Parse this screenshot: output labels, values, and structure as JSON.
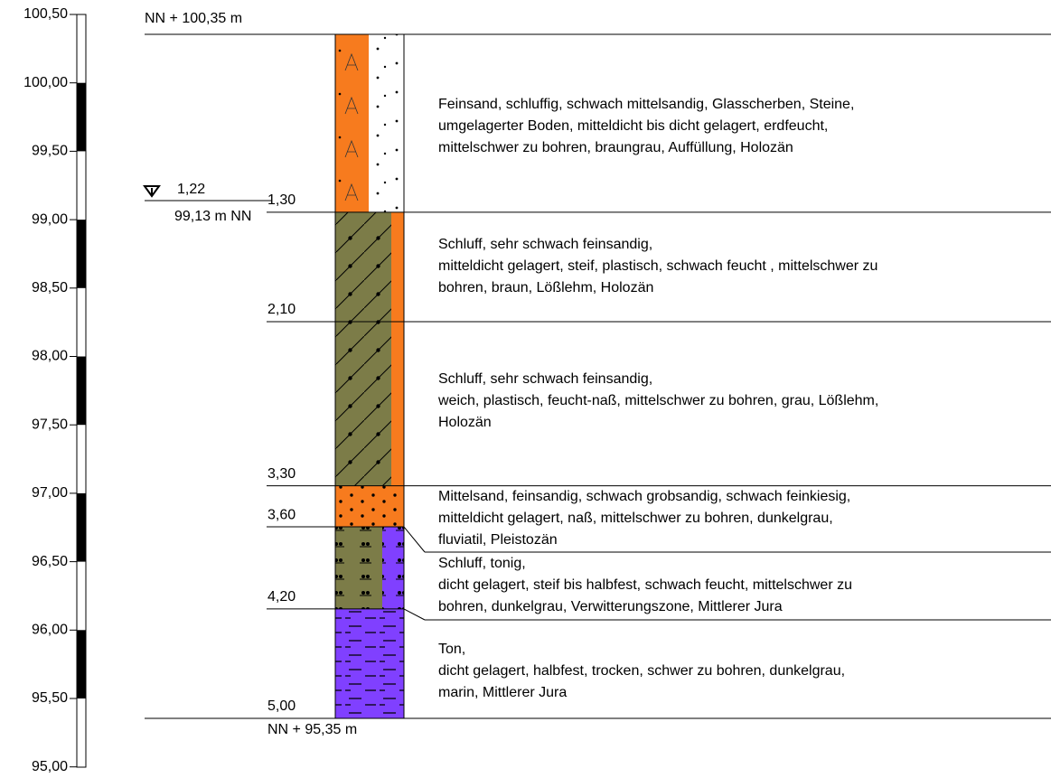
{
  "scale": {
    "ticks": [
      "100,50",
      "100,00",
      "99,50",
      "99,00",
      "98,50",
      "98,00",
      "97,50",
      "97,00",
      "96,50",
      "96,00",
      "95,50",
      "95,00"
    ]
  },
  "top_label": "NN + 100,35 m",
  "bottom_label": "NN + 95,35 m",
  "water_level": {
    "depth": "1,22",
    "elevation": "99,13 m NN"
  },
  "layers": [
    {
      "depth": "1,30",
      "description": [
        "Feinsand, schluffig, schwach mittelsandig, Glasscherben, Steine,",
        "umgelagerter Boden, mitteldicht bis dicht gelagert, erdfeucht,",
        "mittelschwer zu bohren, braungrau, Auffüllung, Holozän"
      ]
    },
    {
      "depth": "2,10",
      "description": [
        "Schluff, sehr schwach feinsandig,",
        "mitteldicht gelagert, steif, plastisch, schwach feucht , mittelschwer zu",
        "bohren, braun, Lößlehm, Holozän"
      ]
    },
    {
      "depth": "3,30",
      "description": [
        "Schluff, sehr schwach feinsandig,",
        "weich, plastisch, feucht-naß, mittelschwer zu bohren, grau, Lößlehm,",
        "Holozän"
      ]
    },
    {
      "depth": "3,60",
      "description": [
        "Mittelsand, feinsandig, schwach grobsandig, schwach feinkiesig,",
        "mitteldicht gelagert, naß, mittelschwer zu bohren, dunkelgrau,",
        "fluviatil, Pleistozän"
      ]
    },
    {
      "depth": "4,20",
      "description": [
        "Schluff, tonig,",
        "dicht gelagert, steif bis halbfest, schwach feucht, mittelschwer zu",
        "bohren, dunkelgrau, Verwitterungszone, Mittlerer Jura"
      ]
    },
    {
      "depth": "5,00",
      "description": [
        "Ton,",
        "dicht gelagert, halbfest, trocken, schwer zu bohren, dunkelgrau,",
        "marin, Mittlerer Jura"
      ]
    }
  ]
}
